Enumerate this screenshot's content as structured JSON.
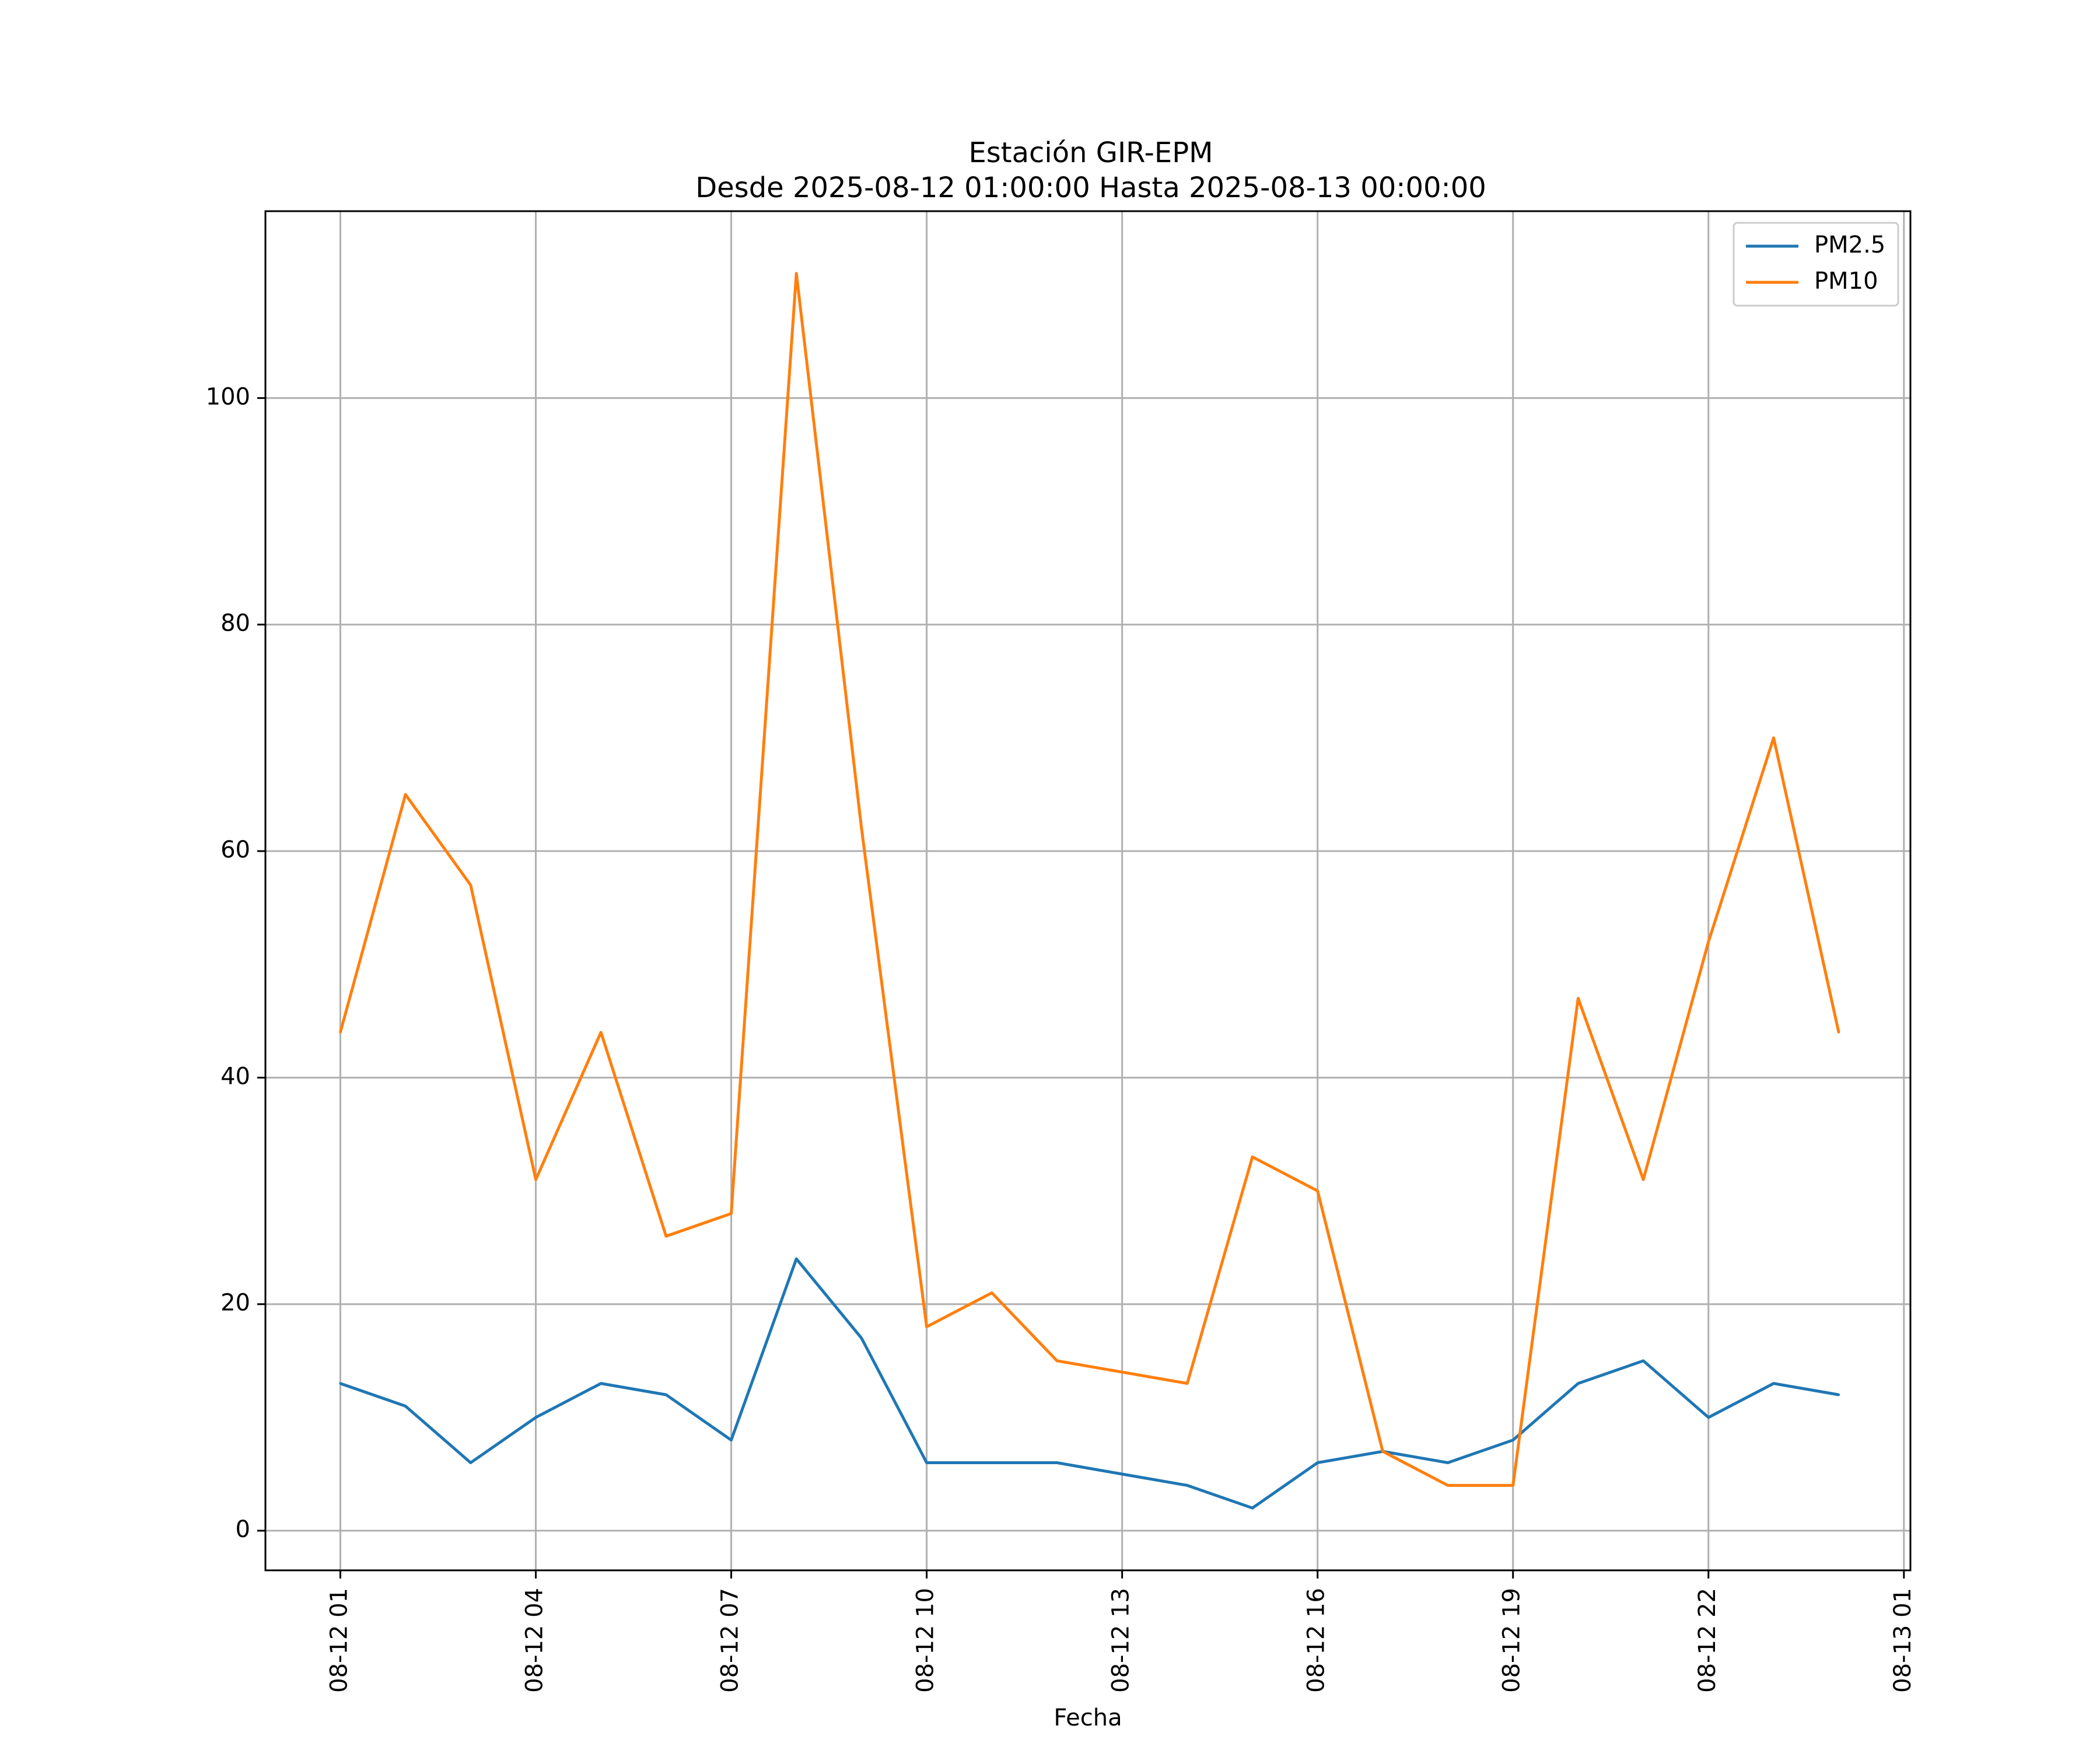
{
  "chart_data": {
    "type": "line",
    "title": "Estación GIR-EPM",
    "subtitle": "Desde 2025-08-12 01:00:00 Hasta 2025-08-13 00:00:00",
    "xlabel": "Fecha",
    "ylabel": "",
    "x_hours": [
      0,
      1,
      2,
      3,
      4,
      5,
      6,
      7,
      8,
      9,
      10,
      11,
      12,
      13,
      14,
      15,
      16,
      17,
      18,
      19,
      20,
      21,
      22,
      23
    ],
    "xlim": [
      -1.15,
      24.1
    ],
    "ylim": [
      -3.5,
      116.5
    ],
    "x_ticks": [
      {
        "hour": 0,
        "label": "08-12 01"
      },
      {
        "hour": 3,
        "label": "08-12 04"
      },
      {
        "hour": 6,
        "label": "08-12 07"
      },
      {
        "hour": 9,
        "label": "08-12 10"
      },
      {
        "hour": 12,
        "label": "08-12 13"
      },
      {
        "hour": 15,
        "label": "08-12 16"
      },
      {
        "hour": 18,
        "label": "08-12 19"
      },
      {
        "hour": 21,
        "label": "08-12 22"
      },
      {
        "hour": 24,
        "label": "08-13 01"
      }
    ],
    "y_ticks": [
      {
        "value": 0,
        "label": "0"
      },
      {
        "value": 20,
        "label": "20"
      },
      {
        "value": 40,
        "label": "40"
      },
      {
        "value": 60,
        "label": "60"
      },
      {
        "value": 80,
        "label": "80"
      },
      {
        "value": 100,
        "label": "100"
      }
    ],
    "grid": true,
    "legend_position": "top-right",
    "series": [
      {
        "name": "PM2.5",
        "color": "#1f77b4",
        "values": [
          13,
          11,
          6,
          10,
          13,
          12,
          8,
          24,
          17,
          6,
          6,
          6,
          5,
          4,
          2,
          6,
          7,
          6,
          8,
          13,
          15,
          10,
          13,
          12
        ]
      },
      {
        "name": "PM10",
        "color": "#ff7f0e",
        "values": [
          44,
          65,
          57,
          31,
          44,
          26,
          28,
          111,
          62,
          18,
          21,
          15,
          14,
          13,
          33,
          30,
          7,
          4,
          4,
          47,
          31,
          52,
          70,
          44
        ]
      }
    ]
  }
}
